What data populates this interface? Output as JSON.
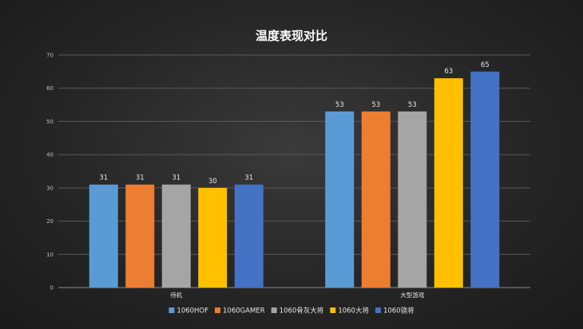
{
  "chart_data": {
    "type": "bar",
    "title": "温度表现对比",
    "categories": [
      "待机",
      "大型游戏"
    ],
    "series": [
      {
        "name": "1060HOF",
        "color": "#5b9bd5",
        "values": [
          31,
          53
        ]
      },
      {
        "name": "1060GAMER",
        "color": "#ed7d31",
        "values": [
          31,
          53
        ]
      },
      {
        "name": "1060骨灰大将",
        "color": "#a5a5a5",
        "values": [
          31,
          53
        ]
      },
      {
        "name": "1060大将",
        "color": "#ffc000",
        "values": [
          30,
          63
        ]
      },
      {
        "name": "1060骁将",
        "color": "#4472c4",
        "values": [
          31,
          65
        ]
      }
    ],
    "ylim": [
      0,
      70
    ],
    "yticks": [
      0,
      10,
      20,
      30,
      40,
      50,
      60,
      70
    ],
    "grid": true,
    "legend": "bottom",
    "data_labels": true
  }
}
